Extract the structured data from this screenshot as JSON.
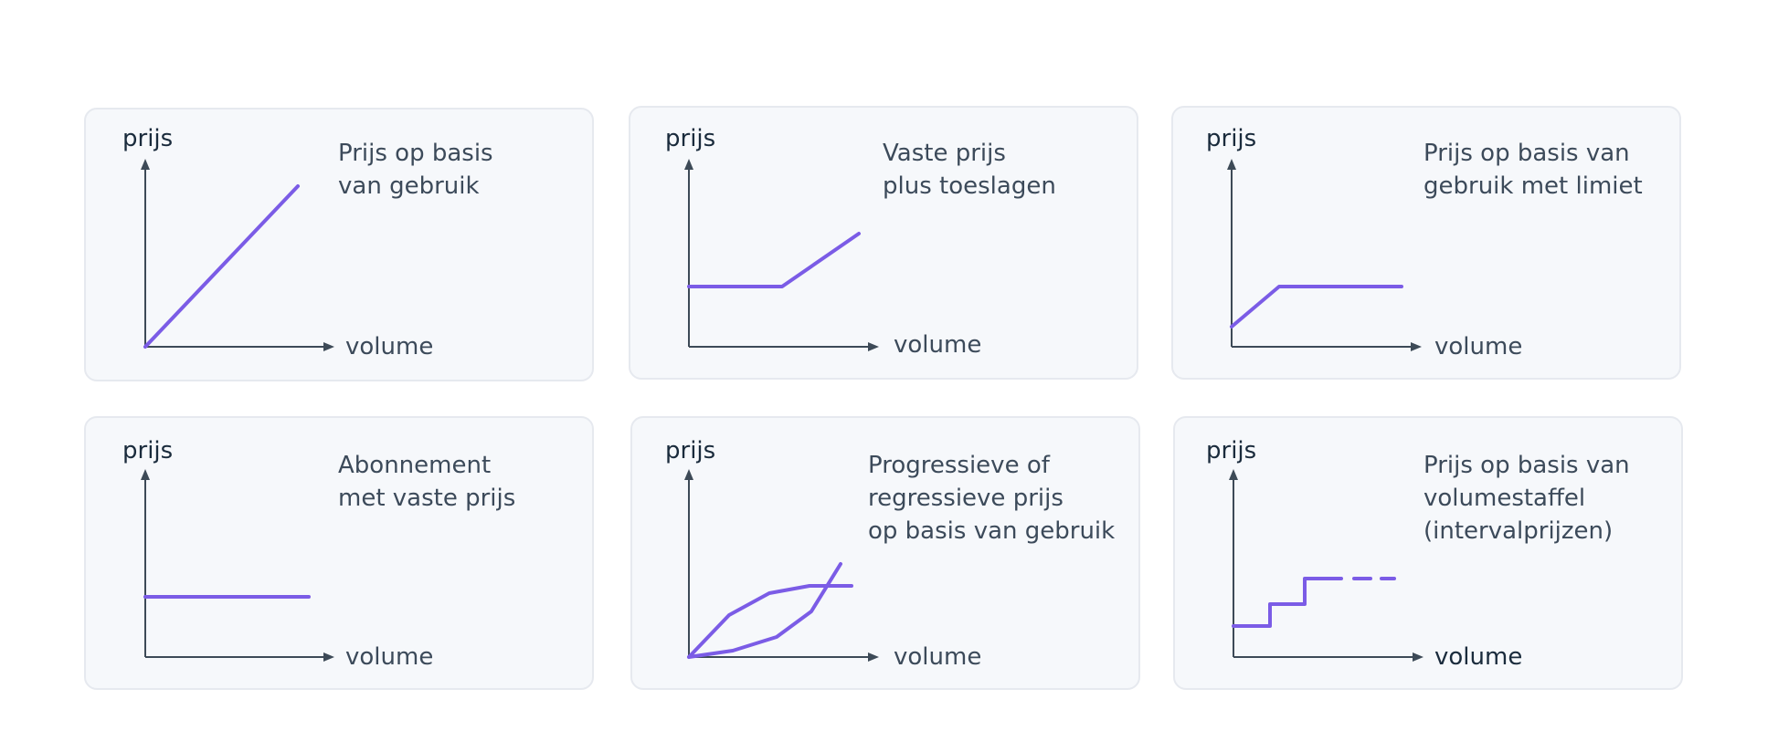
{
  "axis_labels": {
    "y": "prijs",
    "x": "volume"
  },
  "colors": {
    "curve": "#7b5ce6",
    "axis": "#3d4a57",
    "card_bg": "#f6f8fb",
    "card_border": "#e6e9ef"
  },
  "cards": [
    {
      "title_lines": [
        "Prijs op basis",
        "van gebruik"
      ]
    },
    {
      "title_lines": [
        "Vaste prijs",
        "plus toeslagen"
      ]
    },
    {
      "title_lines": [
        "Prijs op basis van",
        "gebruik met limiet"
      ]
    },
    {
      "title_lines": [
        "Abonnement",
        "met vaste prijs"
      ]
    },
    {
      "title_lines": [
        "Progressieve of",
        "regressieve prijs",
        "op basis van gebruik"
      ]
    },
    {
      "title_lines": [
        "Prijs op basis van",
        "volumestaffel",
        "(intervalprijzen)"
      ]
    }
  ]
}
